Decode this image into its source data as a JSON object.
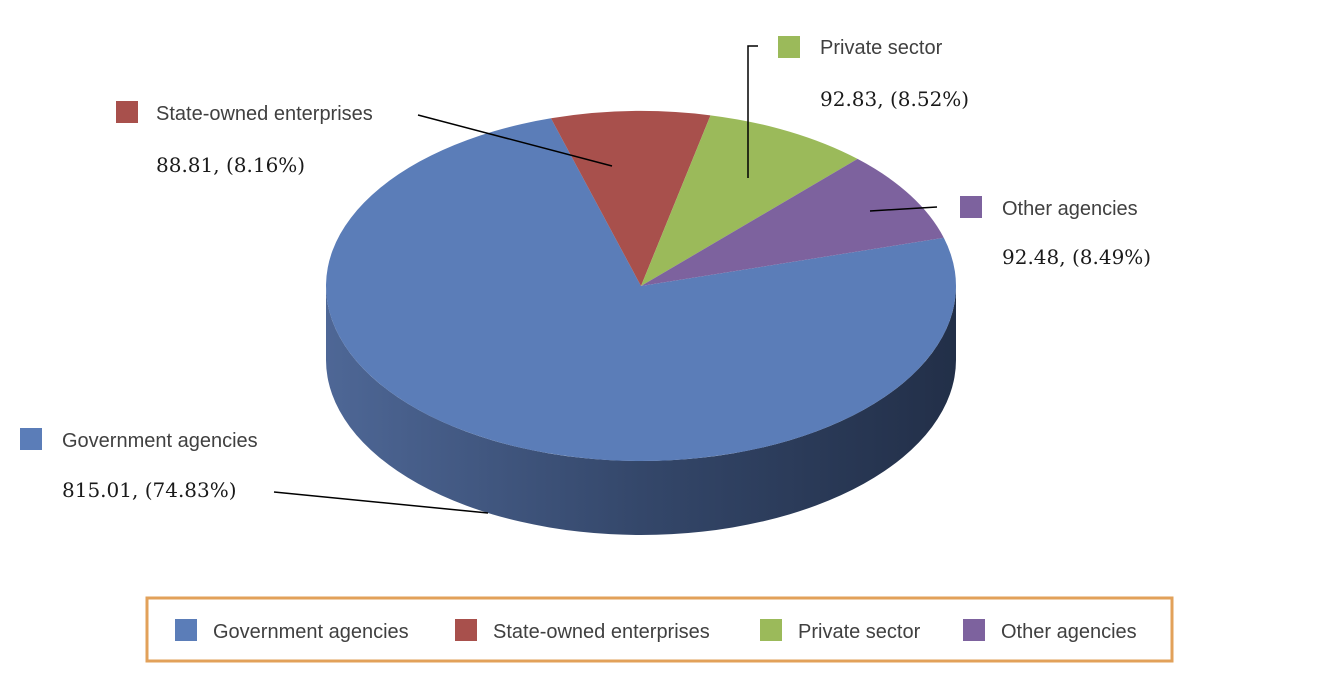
{
  "chart_data": {
    "type": "pie",
    "style": "3d",
    "categories": [
      "Government agencies",
      "State-owned enterprises",
      "Private sector",
      "Other agencies"
    ],
    "values": [
      815.01,
      88.81,
      92.83,
      92.48
    ],
    "percents": [
      "74.83%",
      "8.16%",
      "8.52%",
      "8.49%"
    ],
    "data_labels": [
      "815.01, (74.83%)",
      "88.81, (8.16%)",
      "92.83, (8.52%)",
      "92.48, (8.49%)"
    ],
    "colors": [
      "#5B7DB8",
      "#A8504C",
      "#9BBA5A",
      "#7D629E"
    ],
    "legend": {
      "placement": "bottom",
      "border_color": "#E2A15A",
      "entries": [
        "Government agencies",
        "State-owned enterprises",
        "Private sector",
        "Other agencies"
      ]
    }
  }
}
